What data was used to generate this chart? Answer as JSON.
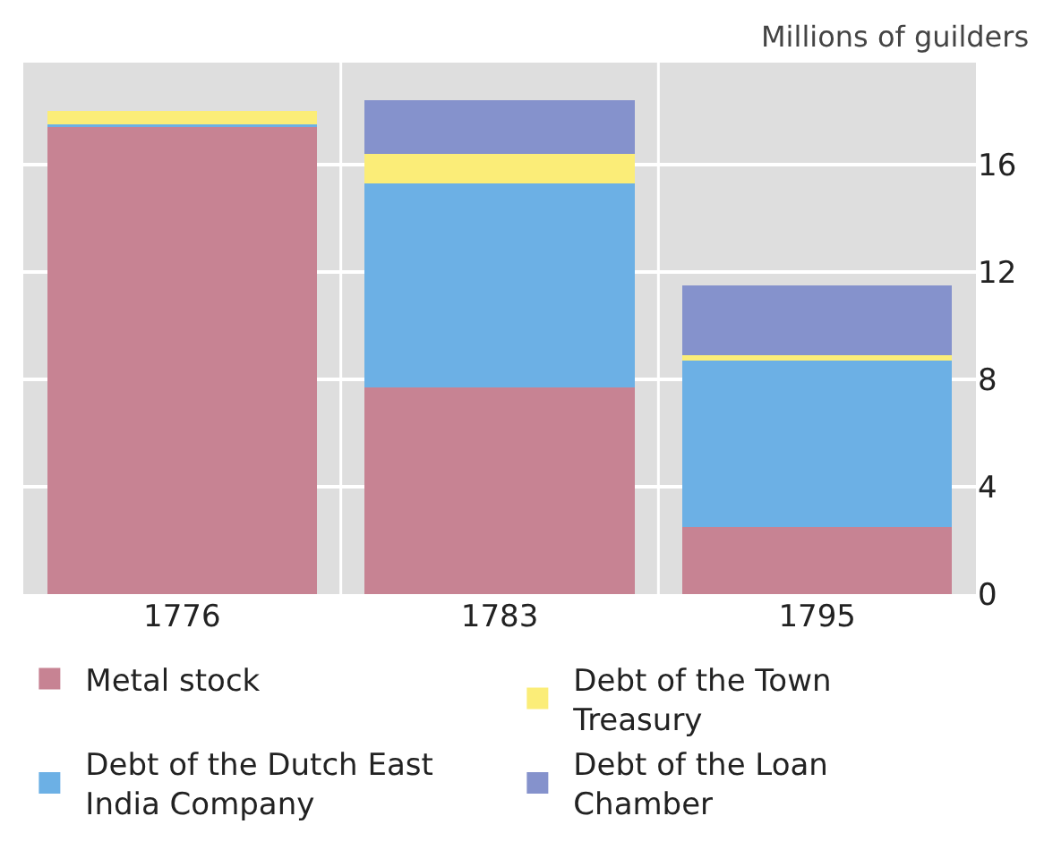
{
  "chart_data": {
    "type": "bar",
    "stacked": true,
    "ylabel": "Millions of guilders",
    "categories": [
      "1776",
      "1783",
      "1795"
    ],
    "series": [
      {
        "name": "Metal stock",
        "color": "#c78393",
        "values": [
          17.4,
          7.7,
          2.5
        ]
      },
      {
        "name": "Debt of the Dutch East India Company",
        "color": "#6cb0e5",
        "values": [
          0.1,
          7.6,
          6.2
        ]
      },
      {
        "name": "Debt of the Town Treasury",
        "color": "#fbed78",
        "values": [
          0.5,
          1.1,
          0.2
        ]
      },
      {
        "name": "Debt of the Loan Chamber",
        "color": "#8592cc",
        "values": [
          0,
          2.0,
          2.6
        ]
      }
    ],
    "ylim": [
      0,
      19.8
    ],
    "yticks": [
      0,
      4,
      8,
      12,
      16
    ],
    "grid": true,
    "legend": "bottom"
  }
}
